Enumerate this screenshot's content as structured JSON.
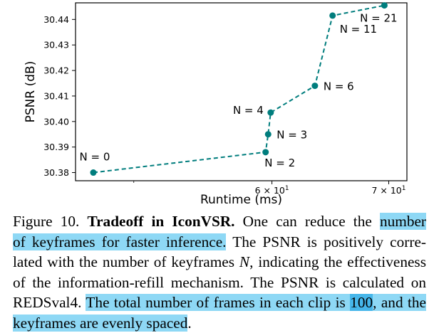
{
  "colors": {
    "series": "#007d7d",
    "highlight": "#8ed8f5",
    "highlight_strong": "#46b6ea"
  },
  "chart_data": {
    "type": "line",
    "title": "",
    "xlabel": "Runtime (ms)",
    "ylabel": "PSNR (dB)",
    "x_scale": "log",
    "xlim": [
      46.3,
      71.7
    ],
    "ylim": [
      30.3768,
      30.4465
    ],
    "x_ticks": [
      {
        "value": 60,
        "label": "6 × 10¹"
      },
      {
        "value": 70,
        "label": "7 × 10¹"
      }
    ],
    "y_ticks": [
      30.38,
      30.39,
      30.4,
      30.41,
      30.42,
      30.43,
      30.44
    ],
    "grid": false,
    "line_style": "dashed",
    "marker": "circle",
    "series": [
      {
        "points": [
          {
            "x": 47.4,
            "y": 30.38,
            "label": "N = 0"
          },
          {
            "x": 59.5,
            "y": 30.388,
            "label": "N = 2"
          },
          {
            "x": 59.7,
            "y": 30.395,
            "label": "N = 3"
          },
          {
            "x": 59.9,
            "y": 30.4035,
            "label": "N = 4"
          },
          {
            "x": 63.5,
            "y": 30.414,
            "label": "N = 6"
          },
          {
            "x": 65.0,
            "y": 30.4415,
            "label": "N = 11"
          },
          {
            "x": 69.6,
            "y": 30.4455,
            "label": "N = 21"
          }
        ]
      }
    ]
  },
  "caption": {
    "lines": [
      [
        {
          "text": "Figure 10. "
        },
        {
          "text": "Tradeoff in IconVSR.",
          "style": "b"
        },
        {
          "text": " One can reduce the "
        },
        {
          "text": "number",
          "style": "hl"
        }
      ],
      [
        {
          "text": "of keyframes for faster inference.",
          "style": "hl"
        },
        {
          "text": " The PSNR is positively corre-"
        }
      ],
      [
        {
          "text": "lated with the number of keyframes "
        },
        {
          "text": "N",
          "style": "i"
        },
        {
          "text": ", indicating the effectiveness"
        }
      ],
      [
        {
          "text": "of the information-refill mechanism. The PSNR is calculated on"
        }
      ],
      [
        {
          "text": "REDSval4. "
        },
        {
          "text": "The total number of frames in each clip is ",
          "style": "hl"
        },
        {
          "text": "100",
          "style": "hl dark"
        },
        {
          "text": ", and the",
          "style": "hl"
        }
      ],
      [
        {
          "text": "keyframes are evenly spaced",
          "style": "hl"
        },
        {
          "text": "."
        }
      ]
    ]
  }
}
